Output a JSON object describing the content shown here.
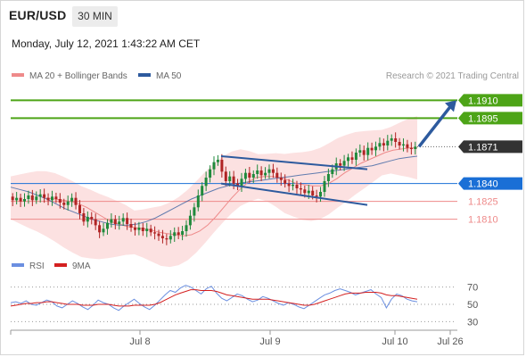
{
  "header": {
    "symbol": "EUR/USD",
    "timeframe": "30 MIN",
    "datetime": "Monday, July 12, 2021 1:43:22 AM CET"
  },
  "legend": {
    "ma20_label": "MA 20 + Bollinger Bands",
    "ma50_label": "MA 50",
    "credit": "Research © 2021 Trading Central",
    "rsi_label": "RSI",
    "ma9_label": "9MA"
  },
  "colors": {
    "ma20": "#ee8a8a",
    "ma50": "#2d5a9e",
    "bollinger_fill": "#fbd9d9",
    "resistance": "#4da417",
    "support_blue": "#1a6fd6",
    "support_red": "#ee8a8a",
    "current": "#333333",
    "rsi": "#6b8fe0",
    "ma9": "#d42020",
    "trend_arrow": "#2d5a9e"
  },
  "chart_data": [
    {
      "type": "candlestick",
      "ylim": [
        1.1788,
        1.1923
      ],
      "x_ticks": [
        "Jul 8",
        "Jul 9",
        "Jul 10",
        "Jul 26"
      ],
      "price_levels": [
        {
          "value": 1.191,
          "label": "1.1910",
          "kind": "resistance"
        },
        {
          "value": 1.1895,
          "label": "1.1895",
          "kind": "resistance"
        },
        {
          "value": 1.1871,
          "label": "1.1871",
          "kind": "current"
        },
        {
          "value": 1.184,
          "label": "1.1840",
          "kind": "support-main"
        },
        {
          "value": 1.1825,
          "label": "1.1825",
          "kind": "support"
        },
        {
          "value": 1.181,
          "label": "1.1810",
          "kind": "support"
        }
      ],
      "close_series": [
        1.1826,
        1.1828,
        1.1825,
        1.1827,
        1.183,
        1.1826,
        1.1829,
        1.1831,
        1.1828,
        1.1826,
        1.1829,
        1.1827,
        1.1824,
        1.1822,
        1.1825,
        1.1828,
        1.1822,
        1.1815,
        1.1808,
        1.1812,
        1.181,
        1.1805,
        1.1799,
        1.1802,
        1.1807,
        1.181,
        1.1806,
        1.1808,
        1.1811,
        1.1806,
        1.1803,
        1.1801,
        1.1803,
        1.18,
        1.1802,
        1.1799,
        1.1798,
        1.1796,
        1.1794,
        1.1793,
        1.1796,
        1.1799,
        1.1797,
        1.18,
        1.1805,
        1.1813,
        1.182,
        1.183,
        1.1838,
        1.1845,
        1.1852,
        1.1858,
        1.186,
        1.185,
        1.1842,
        1.1846,
        1.184,
        1.1838,
        1.1844,
        1.1849,
        1.1845,
        1.1848,
        1.1851,
        1.1847,
        1.1849,
        1.1852,
        1.1849,
        1.1845,
        1.1843,
        1.184,
        1.1838,
        1.1839,
        1.1836,
        1.1835,
        1.1832,
        1.1834,
        1.183,
        1.1829,
        1.1833,
        1.1842,
        1.1848,
        1.1852,
        1.1857,
        1.1855,
        1.1859,
        1.1862,
        1.186,
        1.1866,
        1.1868,
        1.1864,
        1.187,
        1.1868,
        1.1871,
        1.1874,
        1.1872,
        1.1876,
        1.1878,
        1.1875,
        1.1872,
        1.1873,
        1.187,
        1.1869,
        1.1871
      ],
      "ma20_series": [
        1.1828,
        1.1827,
        1.1826,
        1.1825,
        1.1823,
        1.182,
        1.1816,
        1.1812,
        1.1808,
        1.1806,
        1.1804,
        1.1803,
        1.1802,
        1.1801,
        1.1799,
        1.1798,
        1.1797,
        1.1796,
        1.1797,
        1.18,
        1.1805,
        1.1812,
        1.182,
        1.1828,
        1.1835,
        1.1841,
        1.1845,
        1.1846,
        1.1846,
        1.1845,
        1.1843,
        1.184,
        1.1839,
        1.1838,
        1.1838,
        1.184,
        1.1844,
        1.1849,
        1.1853,
        1.1857,
        1.186,
        1.1863,
        1.1866,
        1.1868,
        1.1869,
        1.187,
        1.187
      ],
      "ma50_series": [
        1.1837,
        1.1835,
        1.1833,
        1.183,
        1.1827,
        1.1823,
        1.1819,
        1.1816,
        1.1813,
        1.181,
        1.1808,
        1.1806,
        1.1805,
        1.1805,
        1.1806,
        1.1808,
        1.1811,
        1.1815,
        1.1819,
        1.1823,
        1.1827,
        1.183,
        1.1833,
        1.1836,
        1.1838,
        1.184,
        1.1841,
        1.1842,
        1.1843,
        1.1844,
        1.1845,
        1.1846,
        1.1847,
        1.1848,
        1.1849,
        1.185,
        1.1851,
        1.1852,
        1.1853,
        1.1854,
        1.1855,
        1.1857,
        1.1859,
        1.1861,
        1.1862,
        1.1863
      ],
      "channel_upper": [
        [
          0.0,
          1.1863
        ],
        [
          0.73,
          1.1852
        ]
      ],
      "channel_lower": [
        [
          0.0,
          1.184
        ],
        [
          0.73,
          1.1822
        ]
      ],
      "bullish_target": 1.191
    },
    {
      "type": "line",
      "ylim": [
        20,
        80
      ],
      "y_ticks": [
        70,
        50,
        30
      ],
      "series": [
        {
          "name": "RSI",
          "values": [
            52,
            53,
            51,
            54,
            50,
            49,
            52,
            55,
            53,
            48,
            46,
            50,
            54,
            51,
            47,
            44,
            49,
            55,
            52,
            50,
            46,
            43,
            48,
            52,
            56,
            51,
            47,
            44,
            49,
            55,
            61,
            66,
            64,
            69,
            72,
            70,
            66,
            62,
            68,
            71,
            63,
            57,
            54,
            58,
            62,
            60,
            56,
            53,
            55,
            59,
            57,
            54,
            51,
            49,
            52,
            50,
            47,
            45,
            49,
            53,
            57,
            61,
            63,
            66,
            68,
            66,
            64,
            61,
            63,
            65,
            67,
            62,
            58,
            46,
            56,
            62,
            60,
            56,
            54,
            53
          ]
        },
        {
          "name": "9MA",
          "values": [
            48,
            49,
            50,
            51,
            51,
            52,
            52,
            53,
            53,
            52,
            51,
            50,
            50,
            50,
            49,
            49,
            49,
            50,
            50,
            50,
            49,
            48,
            48,
            48,
            49,
            49,
            49,
            49,
            50,
            52,
            55,
            58,
            61,
            63,
            65,
            67,
            67,
            66,
            66,
            66,
            65,
            63,
            61,
            60,
            59,
            58,
            57,
            56,
            56,
            56,
            56,
            55,
            54,
            53,
            52,
            51,
            50,
            49,
            49,
            50,
            52,
            54,
            56,
            58,
            60,
            62,
            63,
            63,
            63,
            64,
            64,
            64,
            63,
            61,
            60,
            60,
            59,
            58,
            57,
            56
          ]
        }
      ]
    }
  ]
}
